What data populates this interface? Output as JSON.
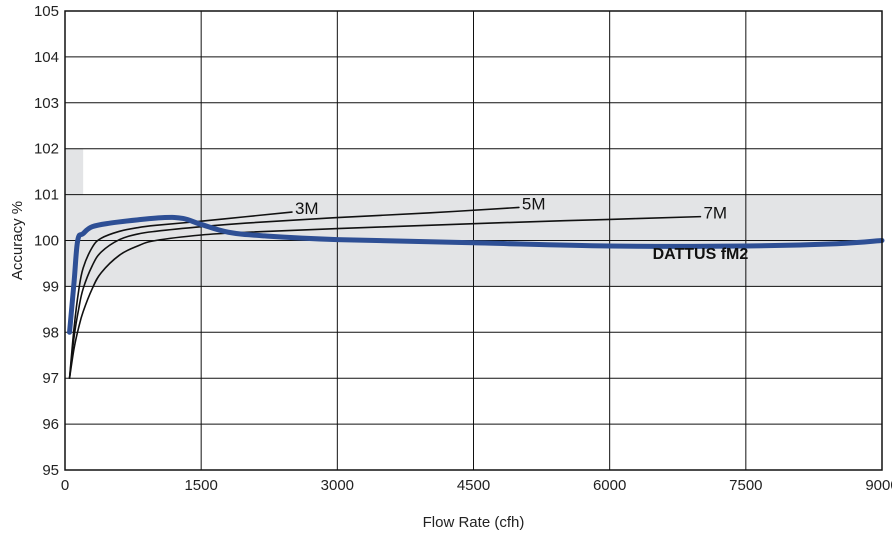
{
  "chart_data": {
    "type": "line",
    "title": "",
    "xlabel": "Flow Rate (cfh)",
    "ylabel": "Accuracy %",
    "xlim": [
      0,
      9000
    ],
    "ylim": [
      95,
      105
    ],
    "x_ticks": [
      0,
      1500,
      3000,
      4500,
      6000,
      7500,
      9000
    ],
    "y_ticks": [
      95,
      96,
      97,
      98,
      99,
      100,
      101,
      102,
      103,
      104,
      105
    ],
    "x_tick_labels": [
      "0",
      "1500",
      "3000",
      "4500",
      "6000",
      "7500",
      "9000"
    ],
    "y_tick_labels": [
      "95",
      "96",
      "97",
      "98",
      "99",
      "100",
      "101",
      "102",
      "103",
      "104",
      "105"
    ],
    "grid": true,
    "bands": [
      {
        "x": [
          0,
          9000
        ],
        "y": [
          99,
          101
        ],
        "color": "#e3e4e6"
      },
      {
        "x": [
          0,
          200
        ],
        "y": [
          101,
          102
        ],
        "color": "#e3e4e6"
      }
    ],
    "series": [
      {
        "name": "DATTUS fM2",
        "color": "#2e4f95",
        "x": [
          50,
          100,
          140,
          200,
          300,
          500,
          800,
          1100,
          1300,
          1500,
          1800,
          2200,
          3000,
          4500,
          6000,
          7500,
          8500,
          9000
        ],
        "y": [
          98,
          99.1,
          100,
          100.15,
          100.3,
          100.38,
          100.45,
          100.5,
          100.48,
          100.35,
          100.18,
          100.1,
          100.02,
          99.95,
          99.88,
          99.88,
          99.93,
          100
        ]
      },
      {
        "name": "3M",
        "color": "#111111",
        "x": [
          50,
          100,
          150,
          200,
          300,
          400,
          600,
          800,
          1000,
          1500,
          2000,
          2500
        ],
        "y": [
          97,
          98.1,
          98.9,
          99.4,
          99.85,
          100.05,
          100.2,
          100.28,
          100.33,
          100.42,
          100.52,
          100.62
        ]
      },
      {
        "name": "5M",
        "color": "#111111",
        "x": [
          50,
          100,
          150,
          200,
          300,
          400,
          600,
          800,
          1000,
          1500,
          2000,
          3000,
          4000,
          5000
        ],
        "y": [
          97,
          97.9,
          98.5,
          98.95,
          99.45,
          99.75,
          100.02,
          100.14,
          100.2,
          100.3,
          100.38,
          100.5,
          100.6,
          100.72
        ]
      },
      {
        "name": "7M",
        "color": "#111111",
        "x": [
          50,
          100,
          150,
          200,
          300,
          400,
          600,
          800,
          1000,
          1500,
          2000,
          3000,
          4000,
          5000,
          6000,
          7000
        ],
        "y": [
          97,
          97.65,
          98.1,
          98.45,
          98.95,
          99.3,
          99.68,
          99.88,
          100.0,
          100.12,
          100.18,
          100.26,
          100.33,
          100.4,
          100.46,
          100.52
        ]
      }
    ]
  }
}
